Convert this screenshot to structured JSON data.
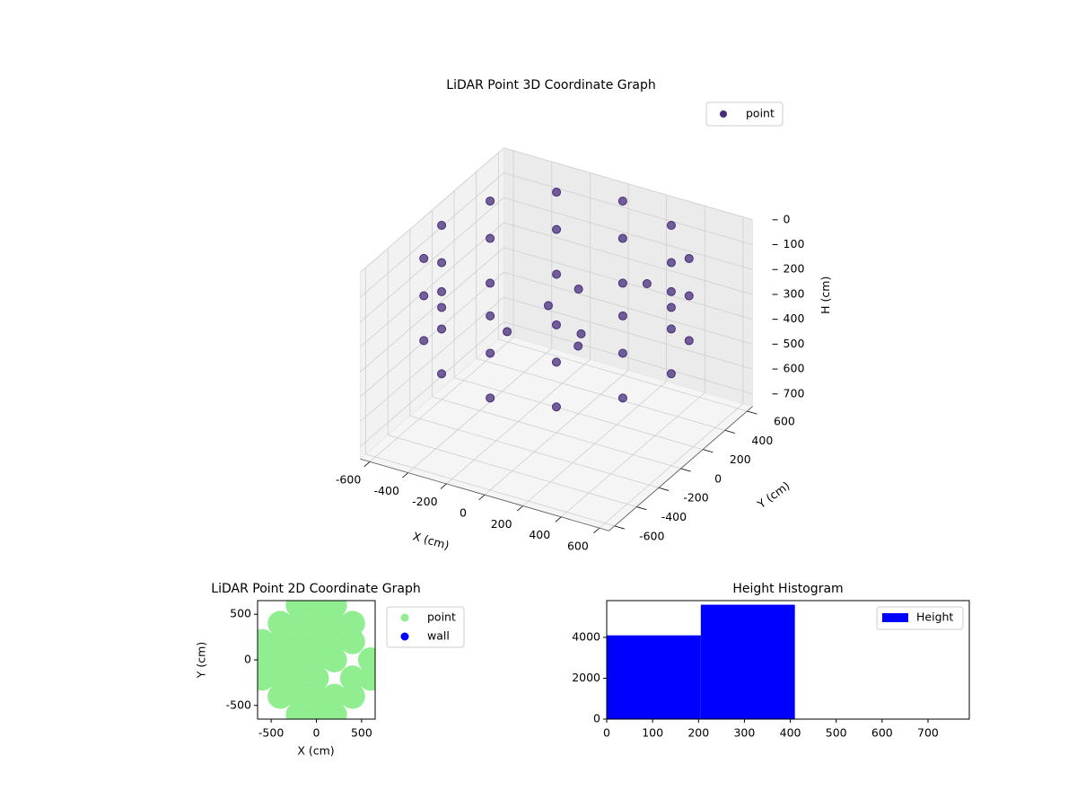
{
  "chart_data": [
    {
      "type": "scatter3d",
      "title": "LiDAR Point 3D Coordinate Graph",
      "xlabel": "X (cm)",
      "ylabel": "Y (cm)",
      "zlabel": "H (cm)",
      "xlim": [
        -650,
        650
      ],
      "ylim": [
        -650,
        650
      ],
      "zlim": [
        0,
        750
      ],
      "zinvert": true,
      "xticks": [
        -600,
        -400,
        -200,
        0,
        200,
        400,
        600
      ],
      "yticks": [
        -600,
        -400,
        -200,
        0,
        200,
        400,
        600
      ],
      "zticks": [
        0,
        100,
        200,
        300,
        400,
        500,
        600,
        700
      ],
      "grid": true,
      "legend": "upper right",
      "series": [
        {
          "name": "point",
          "color": "#472c7a",
          "x": [
            600,
            520,
            300,
            0,
            -300,
            -520,
            -600,
            -520,
            -300,
            0,
            300,
            520,
            600,
            520,
            300,
            0,
            -300,
            -520,
            -600,
            -520,
            -300,
            0,
            300,
            520,
            600,
            520,
            300,
            0,
            -300,
            -520,
            -600,
            -520,
            -300,
            0,
            300,
            520,
            -100,
            0,
            100,
            300,
            -200,
            200
          ],
          "y": [
            0,
            300,
            520,
            600,
            520,
            300,
            0,
            -300,
            -520,
            -600,
            -520,
            -300,
            0,
            300,
            520,
            600,
            520,
            300,
            0,
            -300,
            -520,
            -600,
            -520,
            -300,
            0,
            300,
            520,
            600,
            520,
            300,
            0,
            -300,
            -520,
            -600,
            -520,
            -300,
            100,
            200,
            50,
            300,
            -100,
            -150
          ],
          "z": [
            50,
            50,
            50,
            50,
            50,
            50,
            50,
            50,
            50,
            50,
            50,
            50,
            200,
            200,
            200,
            200,
            200,
            200,
            200,
            200,
            200,
            200,
            200,
            200,
            380,
            380,
            380,
            380,
            380,
            380,
            380,
            380,
            380,
            380,
            380,
            380,
            300,
            250,
            350,
            200,
            350,
            300
          ]
        }
      ]
    },
    {
      "type": "scatter",
      "title": "LiDAR Point 2D Coordinate Graph",
      "xlabel": "X (cm)",
      "ylabel": "Y (cm)",
      "xlim": [
        -650,
        650
      ],
      "ylim": [
        -650,
        650
      ],
      "xticks": [
        -500,
        0,
        500
      ],
      "yticks": [
        -500,
        0,
        500
      ],
      "legend": "outside right",
      "series": [
        {
          "name": "point",
          "color": "#90ee90",
          "x": [
            -200,
            0,
            200,
            -400,
            -200,
            0,
            200,
            400,
            -600,
            -400,
            -200,
            0,
            200,
            400,
            600,
            -600,
            -400,
            -200,
            0,
            200,
            -600,
            -400,
            -200,
            0,
            400,
            600,
            -400,
            -200,
            0,
            200,
            400,
            -200,
            0,
            200,
            -600
          ],
          "y": [
            600,
            600,
            600,
            400,
            400,
            400,
            400,
            400,
            200,
            200,
            200,
            200,
            200,
            -200,
            -200,
            0,
            0,
            0,
            0,
            0,
            -200,
            -200,
            -200,
            -200,
            200,
            0,
            -400,
            -400,
            -400,
            -400,
            -400,
            -600,
            -600,
            -600,
            200
          ]
        },
        {
          "name": "wall",
          "color": "#0000ff",
          "x": [],
          "y": []
        }
      ]
    },
    {
      "type": "histogram",
      "title": "Height Histogram",
      "name": "Height",
      "color": "#0000ff",
      "bins": [
        0,
        205,
        410
      ],
      "values": [
        4100,
        5600
      ],
      "xlim": [
        0,
        790
      ],
      "ylim": [
        0,
        5800
      ],
      "xticks": [
        0,
        100,
        200,
        300,
        400,
        500,
        600,
        700
      ],
      "yticks": [
        0,
        2000,
        4000
      ],
      "legend": "upper right"
    }
  ]
}
